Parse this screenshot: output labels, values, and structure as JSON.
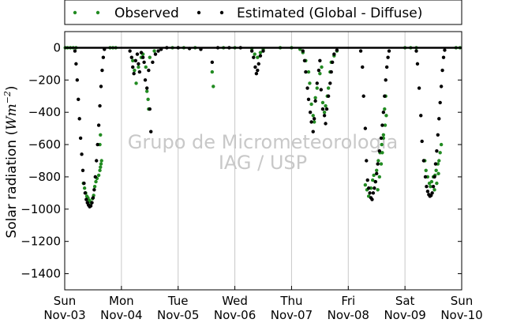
{
  "chart_data": {
    "type": "scatter",
    "title": "",
    "ylabel": "Solar radiation (Wm⁻²)",
    "ylabel_base": "Solar radiation (",
    "ylabel_unit": "Wm",
    "ylabel_exp": "−2",
    "ylabel_close": ")",
    "xlabel": "",
    "ylim": [
      -1500,
      100
    ],
    "xlim": [
      0,
      7
    ],
    "yticks": [
      0,
      -200,
      -400,
      -600,
      -800,
      -1000,
      -1200,
      -1400
    ],
    "ytick_labels": [
      "0",
      "−200",
      "−400",
      "−600",
      "−800",
      "−1000",
      "−1200",
      "−1400"
    ],
    "xticks": [
      {
        "x": 0,
        "day": "Sun",
        "date": "Nov-03"
      },
      {
        "x": 1,
        "day": "Mon",
        "date": "Nov-04"
      },
      {
        "x": 2,
        "day": "Tue",
        "date": "Nov-05"
      },
      {
        "x": 3,
        "day": "Wed",
        "date": "Nov-06"
      },
      {
        "x": 4,
        "day": "Thu",
        "date": "Nov-07"
      },
      {
        "x": 5,
        "day": "Fri",
        "date": "Nov-08"
      },
      {
        "x": 6,
        "day": "Sat",
        "date": "Nov-09"
      },
      {
        "x": 7,
        "day": "Sun",
        "date": "Nov-10"
      }
    ],
    "grid": "vertical",
    "legend_position": "top",
    "series": [
      {
        "name": "Observed",
        "color": "#228b22",
        "points": [
          [
            0.01,
            0
          ],
          [
            0.05,
            0
          ],
          [
            0.1,
            0
          ],
          [
            0.15,
            0
          ],
          [
            0.2,
            0
          ],
          [
            0.33,
            -840
          ],
          [
            0.35,
            -870
          ],
          [
            0.37,
            -900
          ],
          [
            0.39,
            -920
          ],
          [
            0.41,
            -930
          ],
          [
            0.43,
            -945
          ],
          [
            0.45,
            -955
          ],
          [
            0.47,
            -960
          ],
          [
            0.49,
            -935
          ],
          [
            0.51,
            -915
          ],
          [
            0.53,
            -860
          ],
          [
            0.55,
            -830
          ],
          [
            0.57,
            -810
          ],
          [
            0.6,
            -790
          ],
          [
            0.62,
            -760
          ],
          [
            0.63,
            -740
          ],
          [
            0.64,
            -720
          ],
          [
            0.65,
            -700
          ],
          [
            0.62,
            -600
          ],
          [
            0.63,
            -540
          ],
          [
            0.8,
            0
          ],
          [
            0.85,
            0
          ],
          [
            0.9,
            0
          ],
          [
            1.2,
            -80
          ],
          [
            1.23,
            -140
          ],
          [
            1.26,
            -220
          ],
          [
            1.3,
            -120
          ],
          [
            1.35,
            -60
          ],
          [
            1.38,
            -40
          ],
          [
            1.45,
            -270
          ],
          [
            1.47,
            -320
          ],
          [
            1.48,
            -380
          ],
          [
            1.43,
            -120
          ],
          [
            1.5,
            -60
          ],
          [
            1.58,
            -20
          ],
          [
            1.9,
            0
          ],
          [
            2.1,
            0
          ],
          [
            2.3,
            0
          ],
          [
            2.6,
            -150
          ],
          [
            2.62,
            -240
          ],
          [
            2.8,
            0
          ],
          [
            3.0,
            0
          ],
          [
            3.3,
            -5
          ],
          [
            3.35,
            -40
          ],
          [
            3.4,
            -60
          ],
          [
            3.45,
            -30
          ],
          [
            3.5,
            -10
          ],
          [
            3.8,
            0
          ],
          [
            4.0,
            0
          ],
          [
            4.15,
            -10
          ],
          [
            4.2,
            -30
          ],
          [
            4.25,
            -80
          ],
          [
            4.3,
            -150
          ],
          [
            4.32,
            -220
          ],
          [
            4.35,
            -350
          ],
          [
            4.38,
            -420
          ],
          [
            4.4,
            -460
          ],
          [
            4.42,
            -310
          ],
          [
            4.45,
            -250
          ],
          [
            4.5,
            -160
          ],
          [
            4.53,
            -120
          ],
          [
            4.55,
            -340
          ],
          [
            4.58,
            -400
          ],
          [
            4.6,
            -360
          ],
          [
            4.63,
            -300
          ],
          [
            4.65,
            -250
          ],
          [
            4.68,
            -150
          ],
          [
            4.7,
            -90
          ],
          [
            4.75,
            -50
          ],
          [
            4.8,
            -20
          ],
          [
            5.3,
            -850
          ],
          [
            5.33,
            -880
          ],
          [
            5.36,
            -920
          ],
          [
            5.4,
            -870
          ],
          [
            5.43,
            -820
          ],
          [
            5.45,
            -790
          ],
          [
            5.48,
            -830
          ],
          [
            5.5,
            -760
          ],
          [
            5.53,
            -700
          ],
          [
            5.56,
            -650
          ],
          [
            5.59,
            -600
          ],
          [
            5.62,
            -540
          ],
          [
            5.65,
            -480
          ],
          [
            5.67,
            -420
          ],
          [
            5.52,
            -880
          ],
          [
            5.55,
            -800
          ],
          [
            5.58,
            -720
          ],
          [
            5.6,
            -650
          ],
          [
            5.62,
            -560
          ],
          [
            5.64,
            -380
          ],
          [
            5.66,
            -300
          ],
          [
            6.0,
            0
          ],
          [
            6.1,
            0
          ],
          [
            6.2,
            0
          ],
          [
            6.35,
            -700
          ],
          [
            6.37,
            -760
          ],
          [
            6.4,
            -800
          ],
          [
            6.43,
            -840
          ],
          [
            6.45,
            -860
          ],
          [
            6.47,
            -830
          ],
          [
            6.5,
            -800
          ],
          [
            6.53,
            -790
          ],
          [
            6.55,
            -760
          ],
          [
            6.58,
            -720
          ],
          [
            6.6,
            -700
          ],
          [
            6.62,
            -650
          ],
          [
            6.64,
            -600
          ],
          [
            6.52,
            -880
          ],
          [
            6.56,
            -840
          ],
          [
            6.59,
            -780
          ],
          [
            6.9,
            0
          ],
          [
            6.97,
            0
          ]
        ]
      },
      {
        "name": "Estimated (Global - Diffuse)",
        "color": "#000000",
        "points": [
          [
            0.18,
            -20
          ],
          [
            0.2,
            -100
          ],
          [
            0.22,
            -200
          ],
          [
            0.24,
            -320
          ],
          [
            0.26,
            -440
          ],
          [
            0.28,
            -560
          ],
          [
            0.3,
            -660
          ],
          [
            0.32,
            -760
          ],
          [
            0.34,
            -840
          ],
          [
            0.36,
            -900
          ],
          [
            0.38,
            -940
          ],
          [
            0.4,
            -960
          ],
          [
            0.42,
            -975
          ],
          [
            0.44,
            -985
          ],
          [
            0.46,
            -980
          ],
          [
            0.48,
            -960
          ],
          [
            0.5,
            -930
          ],
          [
            0.52,
            -880
          ],
          [
            0.54,
            -800
          ],
          [
            0.56,
            -700
          ],
          [
            0.58,
            -600
          ],
          [
            0.6,
            -480
          ],
          [
            0.62,
            -360
          ],
          [
            0.64,
            -240
          ],
          [
            0.66,
            -140
          ],
          [
            0.68,
            -60
          ],
          [
            0.7,
            -10
          ],
          [
            1.15,
            -20
          ],
          [
            1.18,
            -60
          ],
          [
            1.2,
            -120
          ],
          [
            1.22,
            -160
          ],
          [
            1.25,
            -80
          ],
          [
            1.28,
            -40
          ],
          [
            1.3,
            -100
          ],
          [
            1.32,
            -150
          ],
          [
            1.35,
            -30
          ],
          [
            1.38,
            -60
          ],
          [
            1.4,
            -90
          ],
          [
            1.42,
            -200
          ],
          [
            1.45,
            -250
          ],
          [
            1.48,
            -140
          ],
          [
            1.5,
            -380
          ],
          [
            1.52,
            -520
          ],
          [
            1.55,
            -90
          ],
          [
            1.6,
            -40
          ],
          [
            1.65,
            -20
          ],
          [
            1.7,
            -10
          ],
          [
            1.8,
            0
          ],
          [
            2.0,
            0
          ],
          [
            2.2,
            -5
          ],
          [
            2.4,
            -10
          ],
          [
            2.6,
            -90
          ],
          [
            2.7,
            0
          ],
          [
            2.9,
            0
          ],
          [
            3.1,
            0
          ],
          [
            3.3,
            -20
          ],
          [
            3.33,
            -60
          ],
          [
            3.36,
            -120
          ],
          [
            3.38,
            -160
          ],
          [
            3.4,
            -140
          ],
          [
            3.42,
            -100
          ],
          [
            3.45,
            -50
          ],
          [
            3.5,
            -20
          ],
          [
            4.2,
            -20
          ],
          [
            4.23,
            -80
          ],
          [
            4.25,
            -150
          ],
          [
            4.28,
            -250
          ],
          [
            4.3,
            -320
          ],
          [
            4.33,
            -400
          ],
          [
            4.35,
            -460
          ],
          [
            4.38,
            -520
          ],
          [
            4.4,
            -440
          ],
          [
            4.42,
            -330
          ],
          [
            4.45,
            -220
          ],
          [
            4.48,
            -140
          ],
          [
            4.5,
            -80
          ],
          [
            4.52,
            -260
          ],
          [
            4.55,
            -380
          ],
          [
            4.58,
            -420
          ],
          [
            4.6,
            -470
          ],
          [
            4.62,
            -380
          ],
          [
            4.65,
            -300
          ],
          [
            4.68,
            -220
          ],
          [
            4.7,
            -150
          ],
          [
            4.72,
            -90
          ],
          [
            4.75,
            -40
          ],
          [
            4.8,
            -15
          ],
          [
            5.22,
            -20
          ],
          [
            5.25,
            -120
          ],
          [
            5.27,
            -300
          ],
          [
            5.3,
            -500
          ],
          [
            5.32,
            -700
          ],
          [
            5.34,
            -820
          ],
          [
            5.36,
            -870
          ],
          [
            5.38,
            -900
          ],
          [
            5.4,
            -930
          ],
          [
            5.42,
            -940
          ],
          [
            5.44,
            -900
          ],
          [
            5.46,
            -870
          ],
          [
            5.48,
            -830
          ],
          [
            5.5,
            -780
          ],
          [
            5.52,
            -720
          ],
          [
            5.55,
            -640
          ],
          [
            5.58,
            -560
          ],
          [
            5.6,
            -480
          ],
          [
            5.62,
            -400
          ],
          [
            5.64,
            -300
          ],
          [
            5.66,
            -200
          ],
          [
            5.68,
            -120
          ],
          [
            5.7,
            -60
          ],
          [
            5.72,
            -20
          ],
          [
            6.2,
            -20
          ],
          [
            6.22,
            -100
          ],
          [
            6.25,
            -250
          ],
          [
            6.28,
            -420
          ],
          [
            6.3,
            -580
          ],
          [
            6.33,
            -700
          ],
          [
            6.36,
            -800
          ],
          [
            6.38,
            -860
          ],
          [
            6.4,
            -890
          ],
          [
            6.42,
            -910
          ],
          [
            6.44,
            -920
          ],
          [
            6.46,
            -915
          ],
          [
            6.48,
            -900
          ],
          [
            6.5,
            -860
          ],
          [
            6.52,
            -800
          ],
          [
            6.54,
            -720
          ],
          [
            6.56,
            -640
          ],
          [
            6.58,
            -540
          ],
          [
            6.6,
            -440
          ],
          [
            6.62,
            -340
          ],
          [
            6.64,
            -240
          ],
          [
            6.66,
            -140
          ],
          [
            6.68,
            -60
          ],
          [
            6.7,
            -15
          ]
        ]
      }
    ]
  },
  "watermark": {
    "line1": "Grupo de Micrometeorologia",
    "line2": "IAG / USP"
  }
}
